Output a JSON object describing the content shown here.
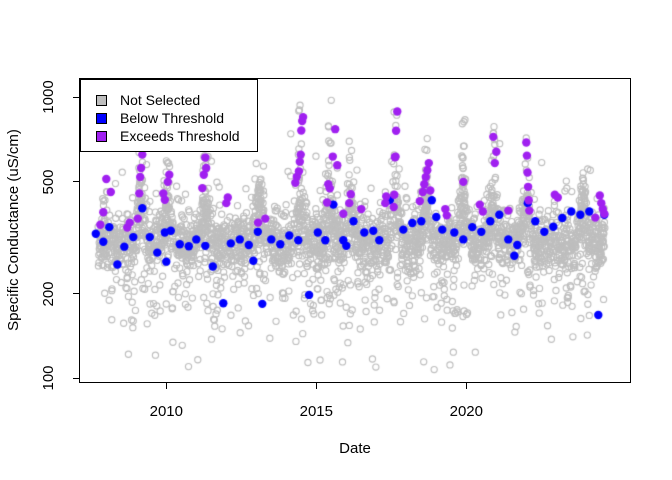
{
  "chart_data": {
    "type": "scatter",
    "title": "",
    "xlabel": "Date",
    "ylabel": "Specific Conductance (uS/cm)",
    "x_ticks": [
      2010,
      2015,
      2020
    ],
    "y_ticks": [
      100,
      200,
      500,
      1000
    ],
    "xlim": [
      2007.09,
      2025.49
    ],
    "ylim": [
      96.2,
      1171
    ],
    "ylog": true,
    "grid": false,
    "legend_position": "top-left",
    "legend": [
      {
        "label": "Not Selected",
        "color": "#BEBEBE",
        "marker": "open-circle"
      },
      {
        "label": "Below Threshold",
        "color": "#0000FF",
        "marker": "filled-circle"
      },
      {
        "label": "Exceeds Threshold",
        "color": "#A020F0",
        "marker": "filled-circle"
      }
    ],
    "series": [
      {
        "name": "Not Selected",
        "color": "#BEBEBE",
        "marker": "open-circle",
        "generator": {
          "seed": 20240731,
          "n": 3400,
          "t_range": [
            2007.72,
            2024.62
          ],
          "band_log_center": 2.485,
          "band_log_sd": 0.05,
          "season_amp": 0.085,
          "season_width": 0.12,
          "low_frac": 0.12,
          "low_log_center": 2.345,
          "low_log_sd": 0.075,
          "high_frac": 0.075,
          "high_log_base": 2.58,
          "high_log_sd": 0.09,
          "spike_frac": 0.05,
          "spikes": [
            [
              2009.15,
              2.88
            ],
            [
              2010.05,
              2.9
            ],
            [
              2011.28,
              2.88
            ],
            [
              2013.1,
              2.72
            ],
            [
              2014.45,
              3.01
            ],
            [
              2015.45,
              3.03
            ],
            [
              2016.15,
              2.9
            ],
            [
              2017.65,
              2.96
            ],
            [
              2018.65,
              2.86
            ],
            [
              2019.9,
              2.94
            ],
            [
              2020.9,
              2.9
            ],
            [
              2022.0,
              2.87
            ],
            [
              2023.9,
              2.72
            ]
          ],
          "outlier_frac": 0.013,
          "outlier_log_range": [
            2.03,
            2.27
          ],
          "log_clip": [
            2.02,
            3.03
          ]
        }
      },
      {
        "name": "Below Threshold",
        "color": "#0000FF",
        "marker": "filled-circle",
        "points": [
          [
            2007.65,
            327
          ],
          [
            2007.9,
            306
          ],
          [
            2008.1,
            345
          ],
          [
            2008.37,
            254
          ],
          [
            2008.6,
            294
          ],
          [
            2008.9,
            318
          ],
          [
            2009.2,
            403
          ],
          [
            2009.45,
            318
          ],
          [
            2009.7,
            280
          ],
          [
            2009.95,
            330
          ],
          [
            2010.0,
            260
          ],
          [
            2010.15,
            335
          ],
          [
            2010.45,
            300
          ],
          [
            2010.75,
            295
          ],
          [
            2011.0,
            312
          ],
          [
            2011.3,
            296
          ],
          [
            2011.55,
            250
          ],
          [
            2011.9,
            185
          ],
          [
            2012.15,
            302
          ],
          [
            2012.45,
            312
          ],
          [
            2012.75,
            298
          ],
          [
            2012.9,
            262
          ],
          [
            2013.05,
            332
          ],
          [
            2013.2,
            184
          ],
          [
            2013.5,
            312
          ],
          [
            2013.8,
            300
          ],
          [
            2014.1,
            322
          ],
          [
            2014.4,
            310
          ],
          [
            2014.76,
            198
          ],
          [
            2015.05,
            330
          ],
          [
            2015.3,
            310
          ],
          [
            2015.57,
            415
          ],
          [
            2015.9,
            310
          ],
          [
            2016.0,
            296
          ],
          [
            2016.24,
            362
          ],
          [
            2016.6,
            330
          ],
          [
            2016.9,
            335
          ],
          [
            2017.1,
            310
          ],
          [
            2017.45,
            430
          ],
          [
            2017.9,
            338
          ],
          [
            2018.2,
            357
          ],
          [
            2018.5,
            362
          ],
          [
            2018.85,
            430
          ],
          [
            2019.0,
            375
          ],
          [
            2019.2,
            338
          ],
          [
            2019.6,
            330
          ],
          [
            2019.9,
            312
          ],
          [
            2020.2,
            345
          ],
          [
            2020.5,
            332
          ],
          [
            2020.8,
            362
          ],
          [
            2021.1,
            382
          ],
          [
            2021.4,
            312
          ],
          [
            2021.6,
            273
          ],
          [
            2021.7,
            298
          ],
          [
            2022.05,
            420
          ],
          [
            2022.3,
            362
          ],
          [
            2022.6,
            332
          ],
          [
            2022.9,
            346
          ],
          [
            2023.2,
            372
          ],
          [
            2023.5,
            392
          ],
          [
            2023.8,
            382
          ],
          [
            2024.1,
            392
          ],
          [
            2024.4,
            168
          ],
          [
            2024.6,
            382
          ]
        ]
      },
      {
        "name": "Exceeds Threshold",
        "color": "#A020F0",
        "marker": "filled-circle",
        "points": [
          [
            2007.8,
            352
          ],
          [
            2007.9,
            390
          ],
          [
            2008.0,
            512
          ],
          [
            2008.15,
            460
          ],
          [
            2008.7,
            344
          ],
          [
            2008.78,
            358
          ],
          [
            2009.05,
            370
          ],
          [
            2009.1,
            455
          ],
          [
            2009.13,
            520
          ],
          [
            2009.16,
            560
          ],
          [
            2009.2,
            625
          ],
          [
            2009.9,
            455
          ],
          [
            2009.95,
            432
          ],
          [
            2010.05,
            500
          ],
          [
            2010.1,
            530
          ],
          [
            2011.2,
            475
          ],
          [
            2011.25,
            530
          ],
          [
            2011.3,
            610
          ],
          [
            2011.33,
            560
          ],
          [
            2012.0,
            420
          ],
          [
            2012.05,
            440
          ],
          [
            2013.06,
            358
          ],
          [
            2013.3,
            370
          ],
          [
            2014.3,
            496
          ],
          [
            2014.35,
            521
          ],
          [
            2014.42,
            545
          ],
          [
            2014.45,
            590
          ],
          [
            2014.48,
            625
          ],
          [
            2014.5,
            762
          ],
          [
            2014.53,
            823
          ],
          [
            2014.56,
            850
          ],
          [
            2015.36,
            422
          ],
          [
            2015.4,
            490
          ],
          [
            2015.45,
            474
          ],
          [
            2015.55,
            615
          ],
          [
            2015.63,
            770
          ],
          [
            2015.7,
            573
          ],
          [
            2015.9,
            385
          ],
          [
            2016.1,
            420
          ],
          [
            2016.15,
            452
          ],
          [
            2016.5,
            400
          ],
          [
            2017.3,
            420
          ],
          [
            2017.33,
            444
          ],
          [
            2017.58,
            407
          ],
          [
            2017.6,
            450
          ],
          [
            2017.62,
            612
          ],
          [
            2017.64,
            615
          ],
          [
            2017.66,
            760
          ],
          [
            2017.7,
            890
          ],
          [
            2018.45,
            427
          ],
          [
            2018.55,
            460
          ],
          [
            2018.6,
            490
          ],
          [
            2018.65,
            520
          ],
          [
            2018.7,
            550
          ],
          [
            2018.75,
            583
          ],
          [
            2018.8,
            466
          ],
          [
            2019.3,
            400
          ],
          [
            2019.35,
            380
          ],
          [
            2019.9,
            500
          ],
          [
            2020.45,
            415
          ],
          [
            2020.55,
            392
          ],
          [
            2020.9,
            723
          ],
          [
            2020.95,
            583
          ],
          [
            2021.0,
            640
          ],
          [
            2021.4,
            395
          ],
          [
            2022.0,
            690
          ],
          [
            2022.02,
            620
          ],
          [
            2022.04,
            540
          ],
          [
            2022.06,
            480
          ],
          [
            2022.08,
            430
          ],
          [
            2022.1,
            395
          ],
          [
            2022.95,
            450
          ],
          [
            2023.05,
            440
          ],
          [
            2024.3,
            373
          ],
          [
            2024.45,
            447
          ],
          [
            2024.5,
            420
          ],
          [
            2024.55,
            400
          ],
          [
            2024.6,
            385
          ]
        ]
      }
    ]
  }
}
